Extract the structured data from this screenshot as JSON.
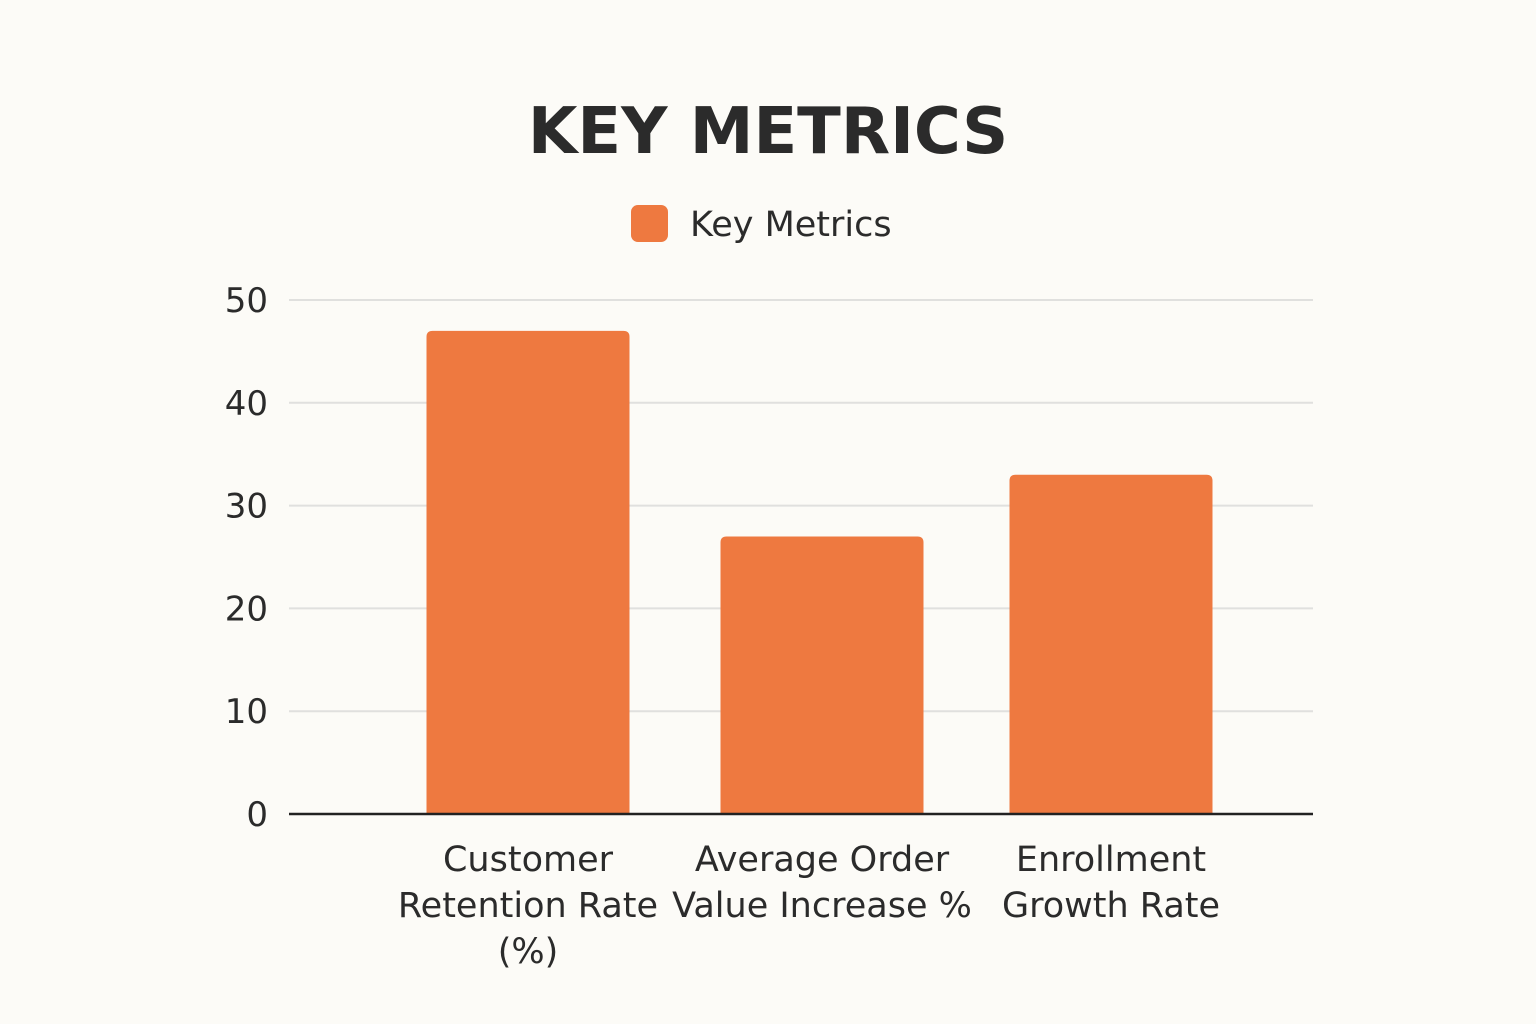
{
  "chart_data": {
    "type": "bar",
    "title": "KEY METRICS",
    "legend": {
      "position": "top-center",
      "entries": [
        "Key Metrics"
      ]
    },
    "categories": [
      [
        "Customer",
        "Retention Rate",
        "(%)"
      ],
      [
        "Average Order",
        "Value Increase %"
      ],
      [
        "Enrollment",
        "Growth Rate"
      ]
    ],
    "series": [
      {
        "name": "Key Metrics",
        "values": [
          47,
          27,
          33
        ],
        "color": "#ee7940"
      }
    ],
    "ylim": [
      0,
      50
    ],
    "yticks": [
      "0",
      "10",
      "20",
      "30",
      "40",
      "50"
    ],
    "grid": true,
    "xlabel": "",
    "ylabel": ""
  },
  "colors": {
    "background": "#fcfbf7",
    "text": "#2b2b2b",
    "grid": "#e0e0de",
    "axis": "#222222"
  }
}
